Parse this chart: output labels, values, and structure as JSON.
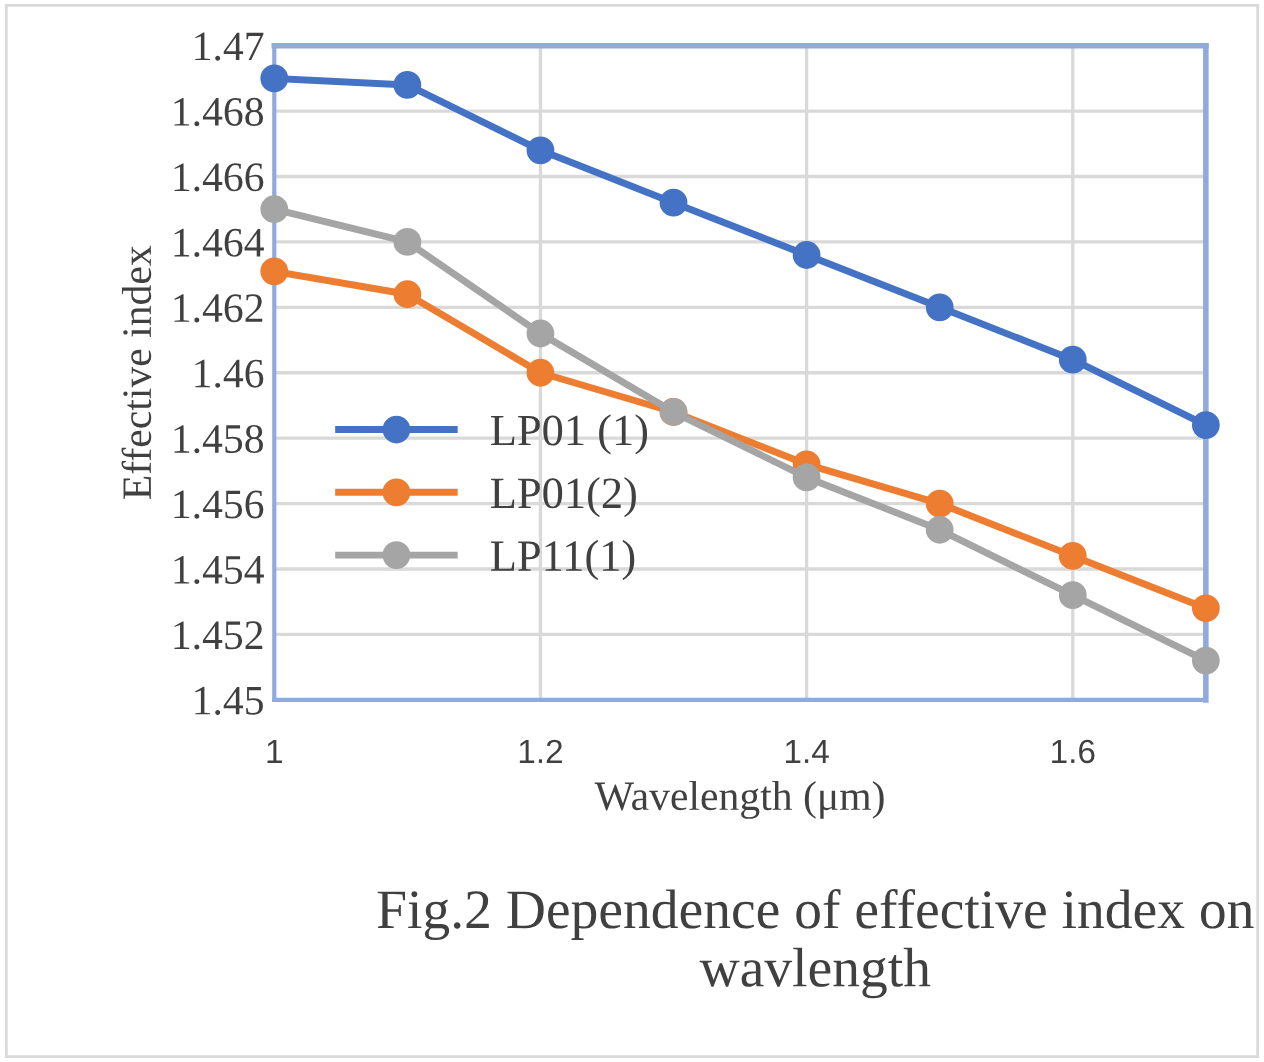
{
  "chart_data": {
    "type": "line",
    "xlabel": "Wavelength (μm)",
    "ylabel": "Effective index",
    "x": [
      1,
      1.1,
      1.2,
      1.3,
      1.4,
      1.5,
      1.6,
      1.7
    ],
    "series": [
      {
        "name": "LP01 (1)",
        "color": "#4472c4",
        "values": [
          1.469,
          1.4688,
          1.4668,
          1.4652,
          1.4636,
          1.462,
          1.4604,
          1.4584
        ]
      },
      {
        "name": "LP01(2)",
        "color": "#ed7d31",
        "values": [
          1.4631,
          1.4624,
          1.46,
          1.4588,
          1.4572,
          1.456,
          1.4544,
          1.4528
        ]
      },
      {
        "name": "LP11(1)",
        "color": "#a5a5a5",
        "values": [
          1.465,
          1.464,
          1.4612,
          1.4588,
          1.4568,
          1.4552,
          1.4532,
          1.4512
        ]
      }
    ],
    "xlim": [
      1,
      1.7
    ],
    "xticks": [
      1,
      1.2,
      1.4,
      1.6
    ],
    "ylim": [
      1.45,
      1.47
    ],
    "yticks": [
      1.45,
      1.452,
      1.454,
      1.456,
      1.458,
      1.46,
      1.462,
      1.464,
      1.466,
      1.468,
      1.47
    ],
    "grid": true,
    "legend": "left",
    "marker": "circle",
    "line_style": "solid",
    "annotations": [
      "Fig.2 Dependence of effective index on wavlength"
    ]
  }
}
